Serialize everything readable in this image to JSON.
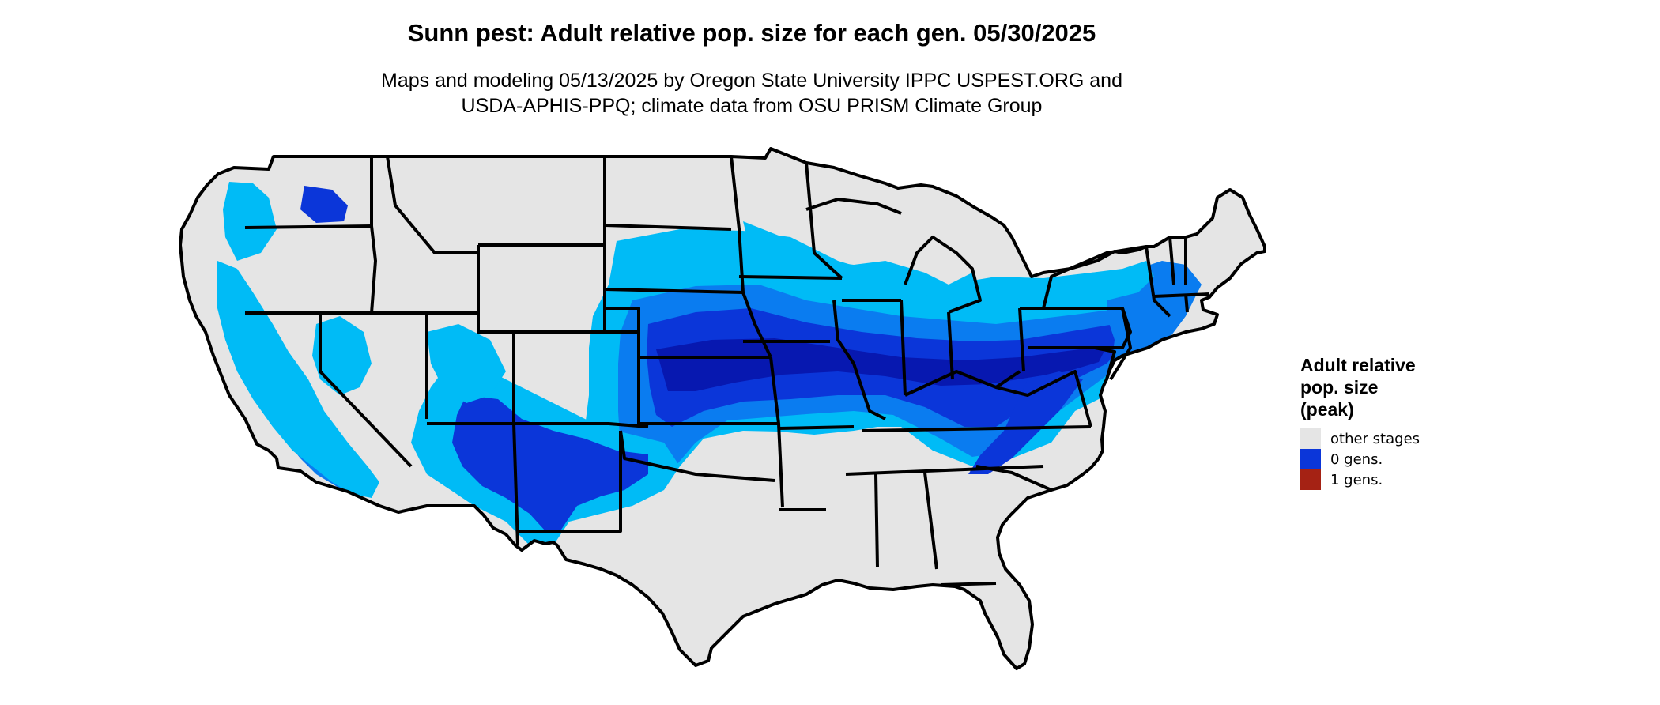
{
  "header": {
    "title": "Sunn pest: Adult relative pop. size for each gen. 05/30/2025",
    "subtitle_line1": "Maps and modeling 05/13/2025 by Oregon State University IPPC USPEST.ORG and",
    "subtitle_line2": "USDA-APHIS-PPQ; climate data from OSU PRISM Climate Group"
  },
  "legend": {
    "title_line1": "Adult relative",
    "title_line2": "pop. size",
    "title_line3": "(peak)",
    "items": [
      {
        "label": "other stages",
        "color": "#e5e5e5"
      },
      {
        "label": "0 gens.",
        "color": "#0b36d9"
      },
      {
        "label": "1 gens.",
        "color": "#a52214"
      }
    ]
  },
  "map": {
    "region": "contiguous-united-states",
    "background_color": "#e5e5e5",
    "border_color": "#000000",
    "shading_colors": {
      "light": "#00bbf6",
      "medium": "#0a7cf0",
      "dark": "#0b36d9",
      "darkest": "#0718b0"
    }
  }
}
